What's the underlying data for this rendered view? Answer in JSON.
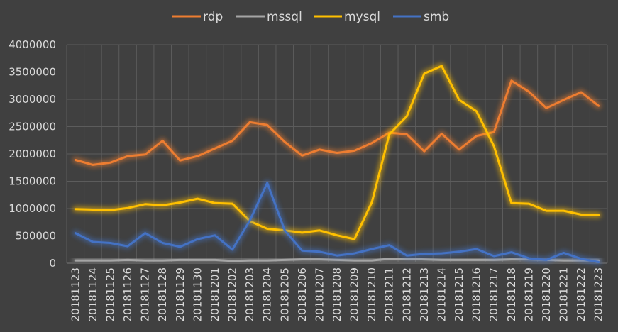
{
  "chart_data": {
    "type": "line",
    "title": "",
    "xlabel": "",
    "ylabel": "",
    "ylim": [
      0,
      4000000
    ],
    "yticks": [
      0,
      500000,
      1000000,
      1500000,
      2000000,
      2500000,
      3000000,
      3500000,
      4000000
    ],
    "grid": true,
    "legend": "top-center",
    "categories": [
      "20181123",
      "20181124",
      "20181125",
      "20181126",
      "20181127",
      "20181128",
      "20181129",
      "20181130",
      "20181201",
      "20181202",
      "20181203",
      "20181204",
      "20181205",
      "20181206",
      "20181207",
      "20181208",
      "20181209",
      "20181210",
      "20181211",
      "20181212",
      "20181213",
      "20181214",
      "20181215",
      "20181216",
      "20181217",
      "20181218",
      "20181219",
      "20181220",
      "20181221",
      "20181222",
      "20181223"
    ],
    "series": [
      {
        "name": "rdp",
        "color": "#ED7D31",
        "values": [
          1890000,
          1800000,
          1840000,
          1960000,
          1990000,
          2240000,
          1880000,
          1960000,
          2100000,
          2240000,
          2580000,
          2530000,
          2220000,
          1970000,
          2080000,
          2020000,
          2060000,
          2200000,
          2390000,
          2360000,
          2050000,
          2370000,
          2080000,
          2330000,
          2400000,
          3340000,
          3140000,
          2840000,
          2990000,
          3130000,
          2880000
        ]
      },
      {
        "name": "mssql",
        "color": "#A5A5A5",
        "values": [
          50000,
          50000,
          50000,
          60000,
          50000,
          50000,
          60000,
          60000,
          60000,
          40000,
          50000,
          50000,
          60000,
          70000,
          70000,
          60000,
          50000,
          50000,
          80000,
          80000,
          70000,
          60000,
          60000,
          60000,
          60000,
          70000,
          70000,
          60000,
          50000,
          50000,
          50000
        ]
      },
      {
        "name": "mysql",
        "color": "#FFC000",
        "values": [
          990000,
          980000,
          970000,
          1010000,
          1080000,
          1060000,
          1110000,
          1180000,
          1100000,
          1090000,
          770000,
          630000,
          600000,
          560000,
          600000,
          510000,
          440000,
          1120000,
          2360000,
          2690000,
          3470000,
          3610000,
          2990000,
          2780000,
          2140000,
          1100000,
          1090000,
          960000,
          960000,
          890000,
          880000
        ]
      },
      {
        "name": "smb",
        "color": "#4472C4",
        "values": [
          550000,
          390000,
          370000,
          310000,
          550000,
          370000,
          300000,
          440000,
          510000,
          250000,
          780000,
          1470000,
          600000,
          230000,
          210000,
          140000,
          180000,
          260000,
          330000,
          140000,
          170000,
          180000,
          210000,
          260000,
          130000,
          200000,
          90000,
          60000,
          190000,
          80000,
          20000
        ]
      }
    ]
  }
}
